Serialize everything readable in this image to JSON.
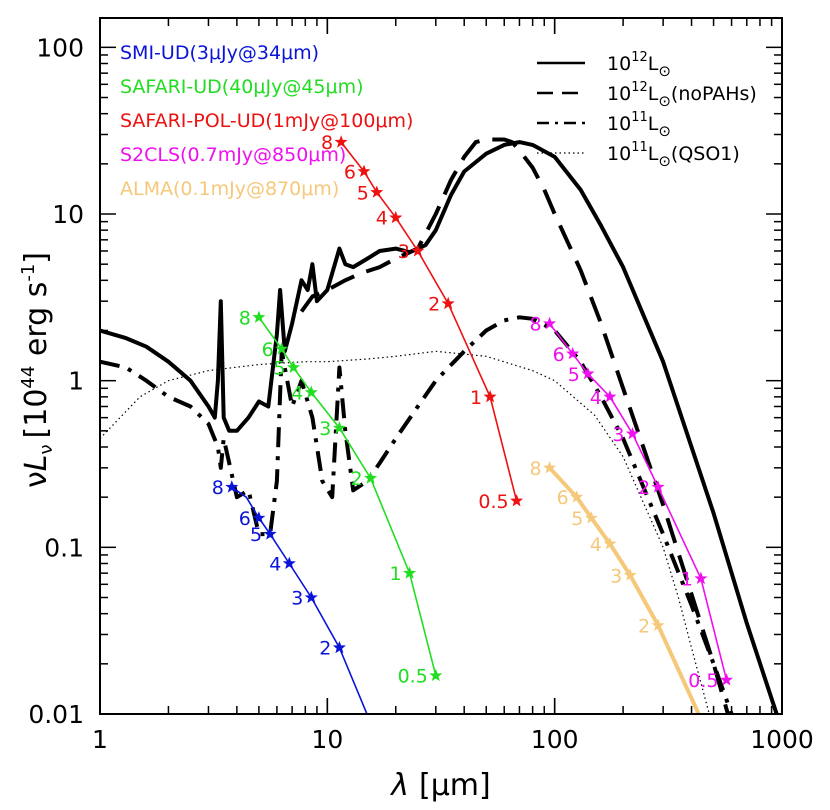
{
  "chart_data": {
    "type": "line",
    "xscale": "log",
    "yscale": "log",
    "xlim": [
      1,
      1000
    ],
    "ylim": [
      0.01,
      150
    ],
    "xticks": [
      1,
      10,
      100,
      1000
    ],
    "xtick_labels": [
      "1",
      "10",
      "100",
      "1000"
    ],
    "yticks": [
      0.01,
      0.1,
      1,
      10,
      100
    ],
    "ytick_labels": [
      "0.01",
      "0.1",
      "1",
      "10",
      "100"
    ],
    "xlabel": {
      "symbol": "λ",
      "unit": "[μm]"
    },
    "ylabel": {
      "prefix": "ν",
      "L": "L",
      "nu": "ν",
      "bracket_open": "[10",
      "exp": "44",
      "unit": " erg s",
      "exp2": "-1",
      "bracket_close": "]"
    },
    "title": "",
    "grid": false,
    "model_legend": [
      {
        "base": "10",
        "exp": "12",
        "unit": "L",
        "sun": "⊙",
        "suffix": "",
        "style": "solid"
      },
      {
        "base": "10",
        "exp": "12",
        "unit": "L",
        "sun": "⊙",
        "suffix": "(noPAHs)",
        "style": "dashed"
      },
      {
        "base": "10",
        "exp": "11",
        "unit": "L",
        "sun": "⊙",
        "suffix": "",
        "style": "dashdot"
      },
      {
        "base": "10",
        "exp": "11",
        "unit": "L",
        "sun": "⊙",
        "suffix": "(QSO1)",
        "style": "dotted"
      }
    ],
    "models": [
      {
        "style": "solid",
        "color": "#000000",
        "width": 4,
        "x": [
          1,
          1.3,
          1.6,
          2,
          2.5,
          3,
          3.2,
          3.3,
          3.4,
          3.5,
          3.7,
          4,
          4.5,
          5,
          5.5,
          6,
          6.2,
          6.5,
          7,
          7.7,
          8.2,
          8.6,
          9,
          10,
          11.3,
          12,
          13,
          15,
          17,
          20,
          23,
          27,
          30,
          35,
          40,
          50,
          60,
          70,
          80,
          100,
          130,
          160,
          200,
          300,
          500,
          700,
          1000
        ],
        "y": [
          2.0,
          1.8,
          1.6,
          1.3,
          1.0,
          0.7,
          0.6,
          1.0,
          3.0,
          0.6,
          0.5,
          0.5,
          0.6,
          0.75,
          0.7,
          1.9,
          3.5,
          1.5,
          2.2,
          4.0,
          3.5,
          5.0,
          3.0,
          3.5,
          6.2,
          5.0,
          4.8,
          5.4,
          6.0,
          6.2,
          5.9,
          6.5,
          8.0,
          13,
          18,
          23,
          26,
          27,
          26,
          22,
          14,
          8.5,
          4.8,
          1.3,
          0.16,
          0.035,
          0.008
        ]
      },
      {
        "style": "dashed",
        "color": "#000000",
        "width": 4,
        "x": [
          7.7,
          8.6,
          10,
          12,
          14,
          17,
          20,
          25,
          30,
          35,
          40,
          45,
          50,
          60,
          65,
          70,
          80,
          90,
          100,
          130,
          160,
          200,
          300,
          500,
          700
        ],
        "y": [
          2.6,
          3.2,
          3.5,
          4.0,
          4.4,
          4.8,
          5.4,
          6.2,
          10,
          16,
          22,
          27,
          28,
          28,
          27,
          24,
          19,
          14,
          10,
          4.6,
          2.2,
          0.9,
          0.18,
          0.02,
          0.004
        ]
      },
      {
        "style": "dashdot",
        "color": "#000000",
        "width": 4,
        "x": [
          1,
          1.3,
          1.6,
          2,
          2.5,
          3,
          3.3,
          3.4,
          3.5,
          4,
          4.5,
          5,
          5.6,
          6,
          6.3,
          7,
          7.7,
          8.6,
          9.5,
          10.5,
          11.3,
          12,
          13,
          15,
          17,
          20,
          25,
          30,
          40,
          50,
          60,
          70,
          80,
          100,
          130,
          160,
          200,
          300,
          400,
          500,
          600,
          700,
          800
        ],
        "y": [
          1.3,
          1.2,
          1.0,
          0.8,
          0.7,
          0.55,
          0.4,
          0.3,
          0.45,
          0.2,
          0.22,
          0.12,
          0.12,
          0.25,
          1.5,
          0.7,
          1.0,
          0.6,
          0.25,
          0.2,
          1.2,
          0.5,
          0.22,
          0.25,
          0.32,
          0.45,
          0.7,
          1.0,
          1.5,
          2.0,
          2.3,
          2.4,
          2.35,
          2.0,
          1.3,
          0.8,
          0.45,
          0.12,
          0.045,
          0.02,
          0.01,
          0.006,
          0.004
        ]
      },
      {
        "style": "dotted",
        "color": "#000000",
        "width": 1.2,
        "x": [
          1,
          1.5,
          2,
          3,
          5,
          8,
          10,
          15,
          20,
          30,
          50,
          80,
          100,
          150,
          200,
          300,
          350,
          400,
          500
        ],
        "y": [
          0.45,
          0.8,
          1.0,
          1.15,
          1.25,
          1.3,
          1.3,
          1.35,
          1.4,
          1.5,
          1.4,
          1.15,
          1.0,
          0.62,
          0.35,
          0.1,
          0.05,
          0.025,
          0.008
        ]
      }
    ],
    "survey_legend": [
      {
        "name": "SMI-UD(3μJy@34μm)",
        "color": "#0a14d8"
      },
      {
        "name": "SAFARI-UD(40μJy@45μm)",
        "color": "#22dd22"
      },
      {
        "name": "SAFARI-POL-UD(1mJy@100μm)",
        "color": "#ee1111"
      },
      {
        "name": "S2CLS(0.7mJy@850μm)",
        "color": "#ee11ee"
      },
      {
        "name": "ALMA(0.1mJy@870μm)",
        "color": "#f5c87a"
      }
    ],
    "series": [
      {
        "color": "#0a14d8",
        "width": 1.6,
        "line_x": [
          3.8,
          4.4,
          5.0,
          5.6,
          6.8,
          8.5,
          11.3,
          16
        ],
        "line_y": [
          0.23,
          0.2,
          0.15,
          0.12,
          0.08,
          0.05,
          0.025,
          0.008
        ],
        "points": [
          {
            "label": "2",
            "x": 11.3,
            "y": 0.025
          },
          {
            "label": "3",
            "x": 8.5,
            "y": 0.05
          },
          {
            "label": "4",
            "x": 6.8,
            "y": 0.08
          },
          {
            "label": "5",
            "x": 5.6,
            "y": 0.12
          },
          {
            "label": "6",
            "x": 5.0,
            "y": 0.15
          },
          {
            "label": "8",
            "x": 3.8,
            "y": 0.23
          }
        ]
      },
      {
        "color": "#22dd22",
        "width": 1.6,
        "line_x": [
          5.0,
          6.3,
          7.1,
          8.5,
          11.3,
          15.5,
          23,
          30
        ],
        "line_y": [
          2.4,
          1.55,
          1.2,
          0.85,
          0.52,
          0.26,
          0.07,
          0.017
        ],
        "points": [
          {
            "label": "0.5",
            "x": 30,
            "y": 0.017
          },
          {
            "label": "1",
            "x": 23,
            "y": 0.07
          },
          {
            "label": "2",
            "x": 15.5,
            "y": 0.26
          },
          {
            "label": "3",
            "x": 11.3,
            "y": 0.52
          },
          {
            "label": "4",
            "x": 8.5,
            "y": 0.85
          },
          {
            "label": "5",
            "x": 7.1,
            "y": 1.2
          },
          {
            "label": "6",
            "x": 6.3,
            "y": 1.55
          },
          {
            "label": "8",
            "x": 5.0,
            "y": 2.4
          }
        ]
      },
      {
        "color": "#ee1111",
        "width": 1.6,
        "line_x": [
          11.5,
          14.5,
          16.5,
          20,
          25,
          34,
          52,
          68
        ],
        "line_y": [
          27,
          18,
          13.5,
          9.5,
          6.0,
          2.9,
          0.8,
          0.19
        ],
        "points": [
          {
            "label": "0.5",
            "x": 68,
            "y": 0.19
          },
          {
            "label": "1",
            "x": 52,
            "y": 0.8
          },
          {
            "label": "2",
            "x": 34,
            "y": 2.9
          },
          {
            "label": "3",
            "x": 25,
            "y": 6.0
          },
          {
            "label": "4",
            "x": 20,
            "y": 9.5
          },
          {
            "label": "5",
            "x": 16.5,
            "y": 13.5
          },
          {
            "label": "6",
            "x": 14.5,
            "y": 18
          },
          {
            "label": "8",
            "x": 11.5,
            "y": 27
          }
        ]
      },
      {
        "color": "#ee11ee",
        "width": 1.6,
        "line_x": [
          95,
          120,
          140,
          175,
          220,
          285,
          440,
          570
        ],
        "line_y": [
          2.2,
          1.45,
          1.1,
          0.8,
          0.48,
          0.23,
          0.065,
          0.016
        ],
        "points": [
          {
            "label": "0.5",
            "x": 570,
            "y": 0.016
          },
          {
            "label": "1",
            "x": 440,
            "y": 0.065
          },
          {
            "label": "2",
            "x": 285,
            "y": 0.23
          },
          {
            "label": "3",
            "x": 220,
            "y": 0.48
          },
          {
            "label": "4",
            "x": 175,
            "y": 0.8
          },
          {
            "label": "5",
            "x": 140,
            "y": 1.1
          },
          {
            "label": "6",
            "x": 120,
            "y": 1.45
          },
          {
            "label": "8",
            "x": 95,
            "y": 2.2
          }
        ]
      },
      {
        "color": "#f5c87a",
        "width": 4,
        "line_x": [
          95,
          125,
          145,
          175,
          215,
          285,
          430
        ],
        "line_y": [
          0.3,
          0.2,
          0.15,
          0.105,
          0.068,
          0.034,
          0.01
        ],
        "points": [
          {
            "label": "2",
            "x": 285,
            "y": 0.034
          },
          {
            "label": "3",
            "x": 215,
            "y": 0.068
          },
          {
            "label": "4",
            "x": 175,
            "y": 0.105
          },
          {
            "label": "5",
            "x": 145,
            "y": 0.15
          },
          {
            "label": "6",
            "x": 125,
            "y": 0.2
          },
          {
            "label": "8",
            "x": 95,
            "y": 0.3
          }
        ]
      }
    ]
  }
}
